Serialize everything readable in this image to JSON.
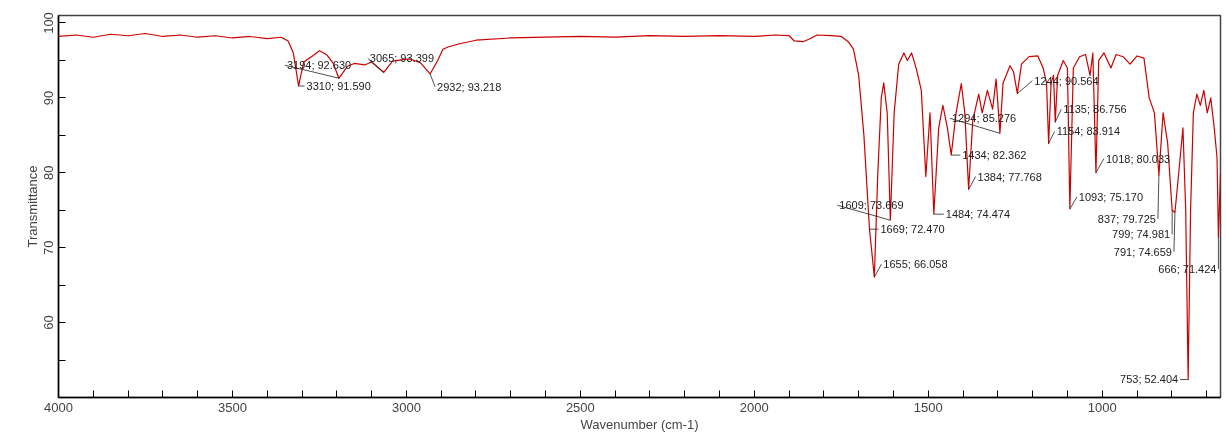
{
  "chart_data": {
    "type": "line",
    "xlabel": "Wavenumber (cm-1)",
    "ylabel": "Transmittance",
    "xlim": [
      4000,
      660
    ],
    "ylim": [
      50,
      101
    ],
    "xticks": [
      4000,
      {
        "value": 3900,
        "label": null
      },
      {
        "value": 3800,
        "label": null
      },
      {
        "value": 3700,
        "label": null
      },
      {
        "value": 3600,
        "label": null
      },
      3500,
      {
        "value": 3400,
        "label": null
      },
      {
        "value": 3300,
        "label": null
      },
      {
        "value": 3200,
        "label": null
      },
      {
        "value": 3100,
        "label": null
      },
      3000,
      {
        "value": 2900,
        "label": null
      },
      {
        "value": 2800,
        "label": null
      },
      {
        "value": 2700,
        "label": null
      },
      {
        "value": 2600,
        "label": null
      },
      2500,
      {
        "value": 2400,
        "label": null
      },
      {
        "value": 2300,
        "label": null
      },
      {
        "value": 2200,
        "label": null
      },
      {
        "value": 2100,
        "label": null
      },
      2000,
      {
        "value": 1900,
        "label": null
      },
      {
        "value": 1800,
        "label": null
      },
      {
        "value": 1700,
        "label": null
      },
      {
        "value": 1600,
        "label": null
      },
      1500,
      {
        "value": 1400,
        "label": null
      },
      {
        "value": 1300,
        "label": null
      },
      {
        "value": 1200,
        "label": null
      },
      {
        "value": 1100,
        "label": null
      },
      1000,
      {
        "value": 900,
        "label": null
      },
      {
        "value": 800,
        "label": null
      },
      {
        "value": 700,
        "label": null
      }
    ],
    "yticks": [
      {
        "value": 55,
        "label": null
      },
      60,
      {
        "value": 65,
        "label": null
      },
      70,
      {
        "value": 75,
        "label": null
      },
      80,
      {
        "value": 85,
        "label": null
      },
      90,
      {
        "value": 95,
        "label": null
      },
      100
    ],
    "grid": false,
    "marker": "none",
    "line_style": "solid",
    "series": [
      {
        "color": "#cc0000",
        "x": [
          4000,
          3950,
          3900,
          3850,
          3800,
          3750,
          3700,
          3650,
          3600,
          3550,
          3500,
          3450,
          3400,
          3360,
          3340,
          3325,
          3310,
          3295,
          3270,
          3250,
          3230,
          3210,
          3194,
          3170,
          3150,
          3120,
          3100,
          3065,
          3040,
          3010,
          2990,
          2960,
          2932,
          2910,
          2895,
          2880,
          2850,
          2800,
          2700,
          2600,
          2500,
          2400,
          2300,
          2200,
          2100,
          2000,
          1940,
          1900,
          1885,
          1860,
          1840,
          1820,
          1780,
          1750,
          1730,
          1715,
          1700,
          1685,
          1669,
          1655,
          1645,
          1635,
          1628,
          1618,
          1609,
          1598,
          1585,
          1570,
          1560,
          1548,
          1535,
          1520,
          1507,
          1495,
          1484,
          1470,
          1458,
          1445,
          1434,
          1420,
          1405,
          1395,
          1384,
          1372,
          1355,
          1345,
          1330,
          1315,
          1305,
          1294,
          1285,
          1265,
          1255,
          1244,
          1232,
          1210,
          1185,
          1170,
          1160,
          1154,
          1147,
          1140,
          1135,
          1128,
          1112,
          1100,
          1093,
          1083,
          1065,
          1048,
          1035,
          1027,
          1018,
          1010,
          995,
          975,
          960,
          940,
          920,
          900,
          880,
          865,
          850,
          837,
          825,
          812,
          799,
          791,
          780,
          768,
          760,
          753,
          746,
          738,
          728,
          718,
          708,
          698,
          688,
          678,
          670,
          666,
          660
        ],
        "values": [
          98.2,
          98.4,
          98.1,
          98.5,
          98.3,
          98.6,
          98.2,
          98.4,
          98.1,
          98.3,
          98.0,
          98.2,
          97.9,
          98.1,
          97.6,
          96.0,
          91.6,
          94.8,
          95.6,
          96.3,
          95.8,
          94.6,
          92.6,
          94.2,
          94.6,
          94.4,
          94.8,
          93.4,
          94.9,
          95.1,
          95.2,
          94.7,
          93.2,
          95.0,
          96.5,
          96.8,
          97.2,
          97.7,
          98.0,
          98.1,
          98.2,
          98.1,
          98.3,
          98.2,
          98.3,
          98.2,
          98.4,
          98.3,
          97.6,
          97.5,
          97.9,
          98.4,
          98.3,
          98.2,
          97.5,
          96.5,
          93.0,
          85.0,
          72.5,
          66.1,
          80.0,
          90.0,
          92.0,
          88.0,
          73.7,
          88.0,
          94.5,
          96.0,
          95.0,
          96.0,
          94.0,
          91.0,
          79.5,
          88.0,
          74.5,
          86.0,
          89.0,
          86.0,
          82.4,
          88.0,
          91.9,
          88.0,
          77.8,
          87.0,
          90.5,
          88.0,
          91.0,
          88.5,
          92.5,
          85.3,
          92.0,
          94.3,
          93.5,
          90.6,
          94.5,
          95.5,
          95.6,
          94.0,
          92.0,
          83.9,
          92.0,
          93.0,
          86.8,
          93.0,
          95.0,
          94.0,
          75.2,
          94.0,
          95.5,
          95.8,
          93.0,
          96.0,
          80.0,
          95.0,
          96.0,
          94.0,
          95.8,
          95.5,
          94.5,
          95.6,
          95.3,
          90.0,
          88.0,
          79.7,
          88.0,
          84.0,
          75.0,
          74.7,
          80.0,
          86.0,
          75.0,
          52.4,
          75.0,
          88.0,
          90.5,
          89.0,
          91.0,
          88.0,
          90.0,
          86.0,
          82.0,
          71.4,
          80.0
        ]
      }
    ],
    "annotations": [
      {
        "text": "3310; 91.590",
        "x": 3310,
        "y": 91.59
      },
      {
        "text": "3194; 92.630",
        "x": 3194,
        "y": 92.63
      },
      {
        "text": "3065; 93.399",
        "x": 3065,
        "y": 93.399
      },
      {
        "text": "2932; 93.218",
        "x": 2932,
        "y": 93.218
      },
      {
        "text": "1669; 72.470",
        "x": 1669,
        "y": 72.47
      },
      {
        "text": "1609; 73.669",
        "x": 1609,
        "y": 73.669
      },
      {
        "text": "1655; 66.058",
        "x": 1655,
        "y": 66.058
      },
      {
        "text": "1484; 74.474",
        "x": 1484,
        "y": 74.474
      },
      {
        "text": "1434; 82.362",
        "x": 1434,
        "y": 82.362
      },
      {
        "text": "1384; 77.768",
        "x": 1384,
        "y": 77.768
      },
      {
        "text": "1294; 85.276",
        "x": 1294,
        "y": 85.276
      },
      {
        "text": "1244; 90.564",
        "x": 1244,
        "y": 90.564
      },
      {
        "text": "1154; 83.914",
        "x": 1154,
        "y": 83.914
      },
      {
        "text": "1135; 86.756",
        "x": 1135,
        "y": 86.756
      },
      {
        "text": "1093; 75.170",
        "x": 1093,
        "y": 75.17
      },
      {
        "text": "1018; 80.033",
        "x": 1018,
        "y": 80.033
      },
      {
        "text": "837; 79.725",
        "x": 837,
        "y": 79.725
      },
      {
        "text": "799; 74.981",
        "x": 799,
        "y": 74.981
      },
      {
        "text": "791; 74.659",
        "x": 791,
        "y": 74.659
      },
      {
        "text": "753; 52.404",
        "x": 753,
        "y": 52.404
      },
      {
        "text": "666; 71.424",
        "x": 666,
        "y": 71.424
      }
    ]
  }
}
